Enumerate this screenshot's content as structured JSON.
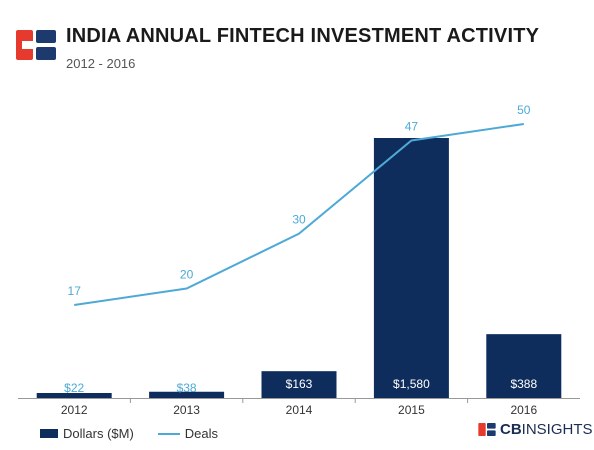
{
  "header": {
    "title": "INDIA ANNUAL FINTECH INVESTMENT ACTIVITY",
    "subtitle": "2012 - 2016"
  },
  "brand": {
    "text_bold": "CB",
    "text_regular": "INSIGHTS"
  },
  "colors": {
    "bar": "#0f2d5c",
    "line": "#4ea9d6",
    "logo_red": "#e63a2e",
    "logo_blue": "#1d3a6e"
  },
  "chart_data": {
    "type": "bar",
    "title": "INDIA ANNUAL FINTECH INVESTMENT ACTIVITY",
    "subtitle": "2012 - 2016",
    "categories": [
      "2012",
      "2013",
      "2014",
      "2015",
      "2016"
    ],
    "series": [
      {
        "name": "Dollars ($M)",
        "type": "bar",
        "values": [
          22,
          38,
          163,
          1580,
          388
        ],
        "labels": [
          "$22",
          "$38",
          "$163",
          "$1,580",
          "$388"
        ]
      },
      {
        "name": "Deals",
        "type": "line",
        "values": [
          17,
          20,
          30,
          47,
          50
        ],
        "labels": [
          "17",
          "20",
          "30",
          "47",
          "50"
        ]
      }
    ],
    "legend": "bottom-left",
    "grid": false
  }
}
